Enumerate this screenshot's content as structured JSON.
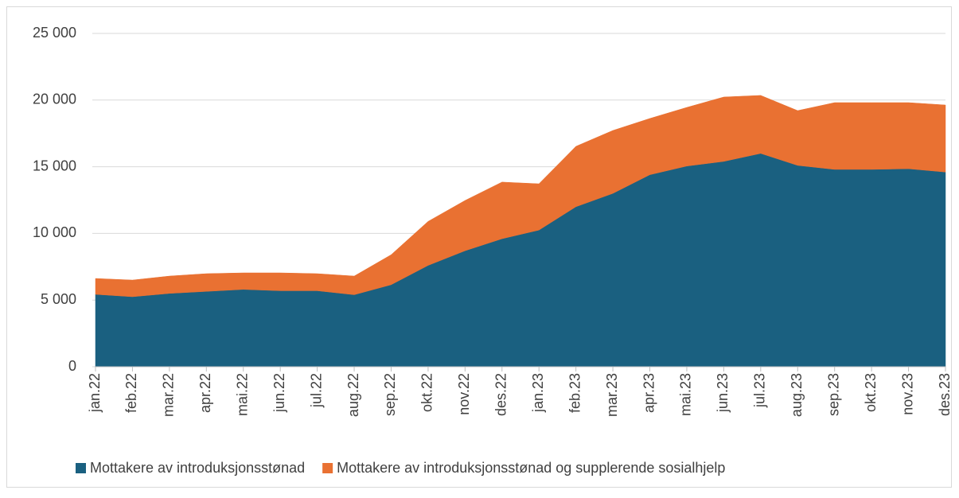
{
  "chart_data": {
    "type": "stacked_area",
    "categories": [
      "jan.22",
      "feb.22",
      "mar.22",
      "apr.22",
      "mai.22",
      "jun.22",
      "jul.22",
      "aug.22",
      "sep.22",
      "okt.22",
      "nov.22",
      "des.22",
      "jan.23",
      "feb.23",
      "mar.23",
      "apr.23",
      "mai.23",
      "jun.23",
      "jul.23",
      "aug.23",
      "sep.23",
      "okt.23",
      "nov.23",
      "des.23"
    ],
    "series": [
      {
        "name": "Mottakere av introduksjonsstønad",
        "color": "#1a6080",
        "values": [
          5430,
          5250,
          5500,
          5650,
          5800,
          5700,
          5700,
          5400,
          6150,
          7600,
          8700,
          9600,
          10250,
          12000,
          13000,
          14400,
          15050,
          15400,
          16000,
          15100,
          14800,
          14800,
          14850,
          14600
        ]
      },
      {
        "name": "Mottakere av introduksjonsstønad og supplerende sosialhjelp",
        "color": "#e97132",
        "values": [
          1190,
          1250,
          1300,
          1330,
          1240,
          1340,
          1280,
          1400,
          2250,
          3300,
          3770,
          4250,
          3470,
          4530,
          4720,
          4220,
          4400,
          4830,
          4350,
          4110,
          5010,
          5010,
          4960,
          5030
        ]
      }
    ],
    "ylim": [
      0,
      25000
    ],
    "yticks": [
      0,
      {
        "value": 5000,
        "label": "5 000"
      },
      {
        "value": 10000,
        "label": "10 000"
      },
      {
        "value": 15000,
        "label": "15 000"
      },
      {
        "value": 20000,
        "label": "20 000"
      },
      {
        "value": 25000,
        "label": "25 000"
      }
    ],
    "grid": true,
    "legend": "bottom"
  }
}
